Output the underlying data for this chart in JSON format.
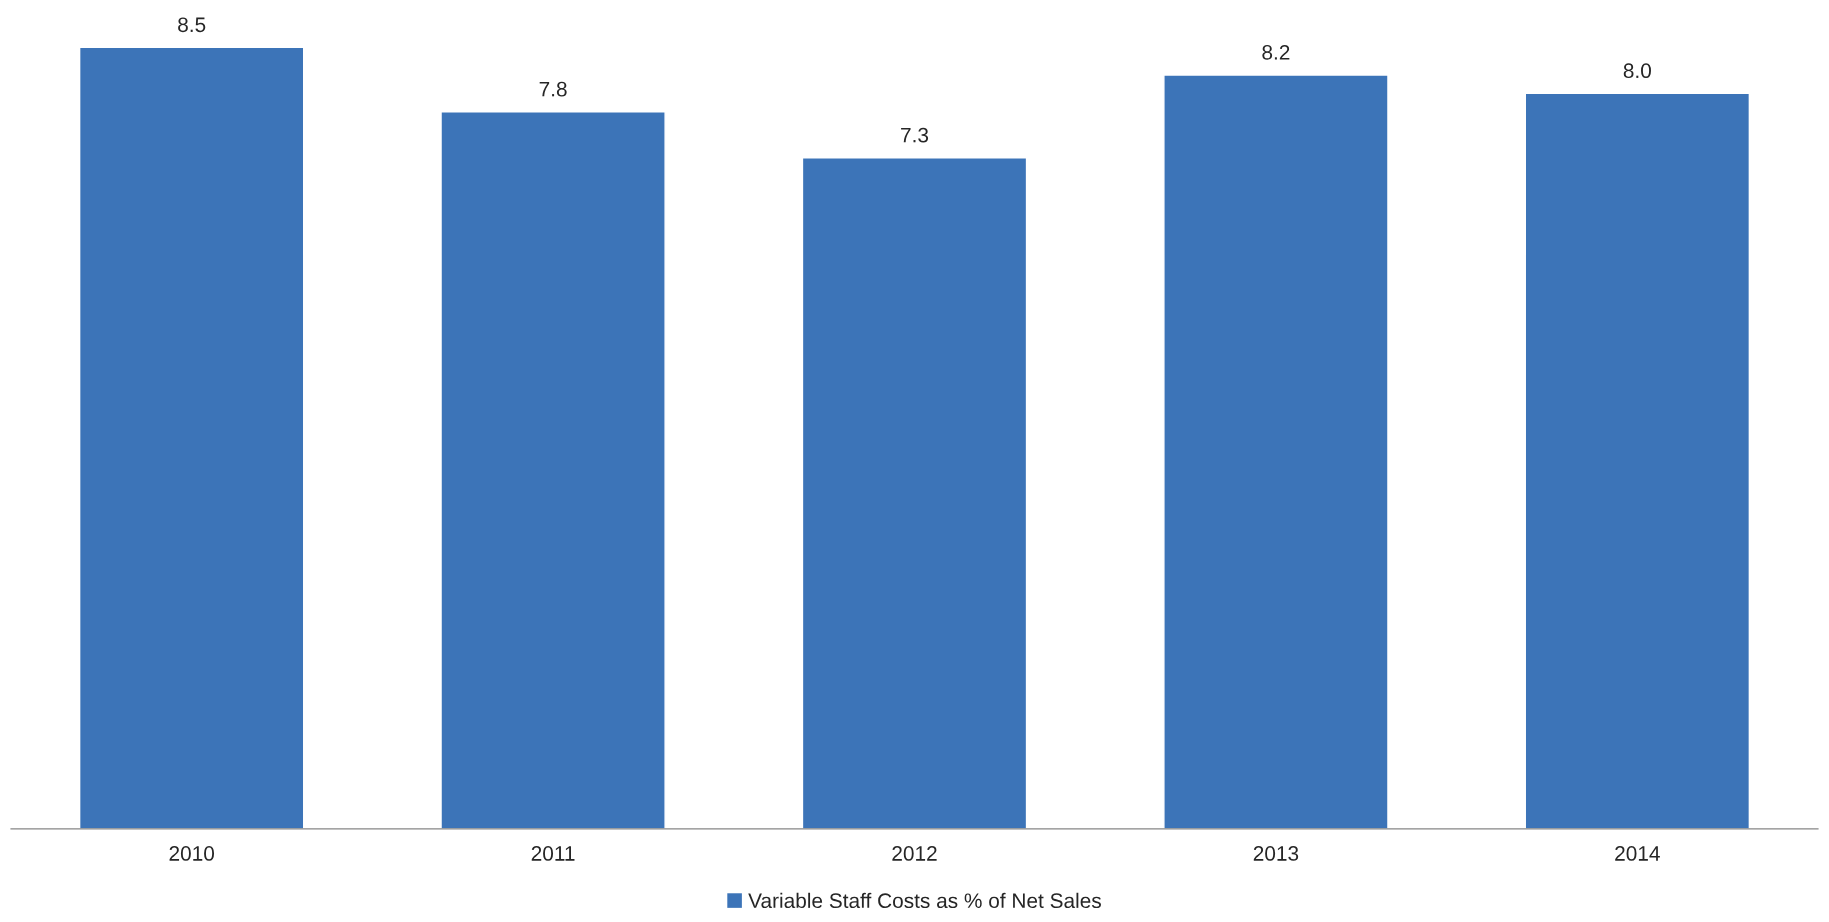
{
  "chart_data": {
    "type": "bar",
    "categories": [
      "2010",
      "2011",
      "2012",
      "2013",
      "2014"
    ],
    "series": [
      {
        "name": "Variable Staff Costs as % of Net Sales",
        "color": "#3c74b8",
        "values": [
          8.5,
          7.8,
          7.3,
          8.2,
          8.0
        ],
        "value_labels": [
          "8.5",
          "7.8",
          "7.3",
          "8.2",
          "8.0"
        ]
      }
    ],
    "legend": "bottom",
    "tick_labels": "x"
  }
}
